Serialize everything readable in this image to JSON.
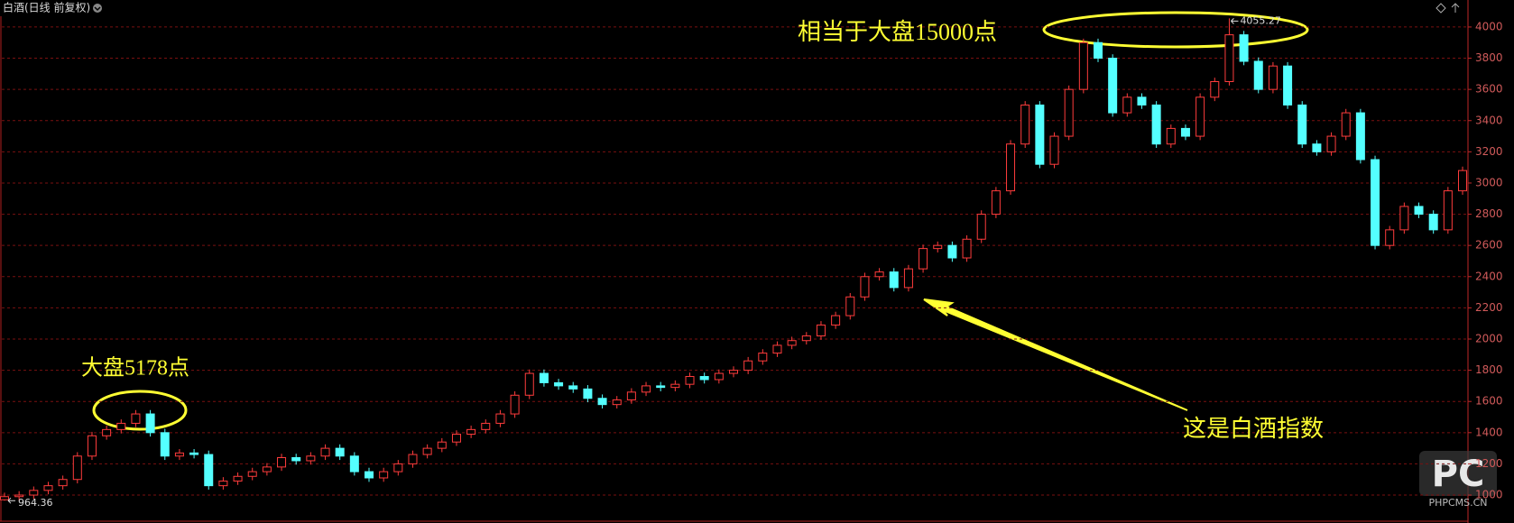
{
  "chart_data": {
    "type": "candlestick",
    "title": "白酒(日线 前复权)",
    "open": [
      970,
      990,
      1000,
      1030,
      1060,
      1100,
      1250,
      1380,
      1420,
      1460,
      1520,
      1400,
      1250,
      1270,
      1260,
      1060,
      1090,
      1120,
      1150,
      1180,
      1240,
      1220,
      1250,
      1300,
      1250,
      1150,
      1110,
      1150,
      1200,
      1260,
      1300,
      1340,
      1390,
      1420,
      1460,
      1520,
      1640,
      1780,
      1720,
      1700,
      1680,
      1620,
      1580,
      1610,
      1660,
      1700,
      1690,
      1710,
      1760,
      1740,
      1780,
      1800,
      1860,
      1910,
      1960,
      1990,
      2020,
      2090,
      2150,
      2270,
      2400,
      2430,
      2330,
      2450,
      2580,
      2600,
      2520,
      2640,
      2800,
      2950,
      3250,
      3500,
      3120,
      3300,
      3600,
      3900,
      3800,
      3450,
      3550,
      3500,
      3250,
      3350,
      3300,
      3550,
      3650,
      3950,
      3780,
      3600,
      3750,
      3500,
      3250,
      3200,
      3300,
      3450,
      3150,
      2600,
      2700,
      2850,
      2800,
      2700,
      2950
    ],
    "high": [
      1015,
      1025,
      1055,
      1085,
      1125,
      1275,
      1405,
      1445,
      1485,
      1545,
      1545,
      1425,
      1295,
      1295,
      1285,
      1115,
      1145,
      1175,
      1205,
      1265,
      1265,
      1275,
      1325,
      1325,
      1275,
      1175,
      1175,
      1225,
      1285,
      1325,
      1365,
      1415,
      1445,
      1485,
      1545,
      1665,
      1805,
      1805,
      1745,
      1725,
      1705,
      1645,
      1635,
      1685,
      1725,
      1725,
      1735,
      1785,
      1785,
      1805,
      1825,
      1885,
      1935,
      1985,
      2015,
      2045,
      2115,
      2175,
      2295,
      2425,
      2455,
      2455,
      2475,
      2605,
      2625,
      2625,
      2665,
      2825,
      2975,
      3275,
      3525,
      3525,
      3325,
      3625,
      3925,
      3925,
      3825,
      3575,
      3575,
      3525,
      3375,
      3375,
      3575,
      3675,
      4055.27,
      3975,
      3805,
      3775,
      3775,
      3525,
      3275,
      3325,
      3475,
      3475,
      3175,
      2725,
      2875,
      2875,
      2825,
      2975,
      3105
    ],
    "low": [
      964.36,
      965,
      975,
      1005,
      1035,
      1075,
      1225,
      1355,
      1395,
      1435,
      1375,
      1225,
      1225,
      1235,
      1035,
      1035,
      1065,
      1095,
      1125,
      1155,
      1195,
      1195,
      1225,
      1225,
      1125,
      1085,
      1085,
      1125,
      1175,
      1235,
      1275,
      1315,
      1365,
      1395,
      1435,
      1495,
      1615,
      1695,
      1675,
      1655,
      1595,
      1555,
      1555,
      1585,
      1635,
      1665,
      1665,
      1685,
      1715,
      1715,
      1755,
      1775,
      1835,
      1885,
      1935,
      1965,
      1995,
      2065,
      2125,
      2245,
      2375,
      2305,
      2305,
      2425,
      2555,
      2495,
      2495,
      2615,
      2775,
      2925,
      3225,
      3095,
      3095,
      3275,
      3575,
      3775,
      3425,
      3425,
      3475,
      3225,
      3225,
      3275,
      3275,
      3525,
      3625,
      3755,
      3575,
      3575,
      3475,
      3225,
      3175,
      3175,
      3275,
      3125,
      2575,
      2575,
      2675,
      2775,
      2675,
      2675,
      2925
    ],
    "close": [
      990,
      1000,
      1030,
      1060,
      1100,
      1250,
      1380,
      1420,
      1460,
      1520,
      1400,
      1250,
      1270,
      1260,
      1060,
      1090,
      1120,
      1150,
      1180,
      1240,
      1220,
      1250,
      1300,
      1250,
      1150,
      1110,
      1150,
      1200,
      1260,
      1300,
      1340,
      1390,
      1420,
      1460,
      1520,
      1640,
      1780,
      1720,
      1700,
      1680,
      1620,
      1580,
      1610,
      1660,
      1700,
      1690,
      1710,
      1760,
      1740,
      1780,
      1800,
      1860,
      1910,
      1960,
      1990,
      2020,
      2090,
      2150,
      2270,
      2400,
      2430,
      2330,
      2450,
      2580,
      2600,
      2520,
      2640,
      2800,
      2950,
      3250,
      3500,
      3120,
      3300,
      3600,
      3900,
      3800,
      3450,
      3550,
      3500,
      3250,
      3350,
      3300,
      3550,
      3650,
      3950,
      3780,
      3600,
      3750,
      3500,
      3250,
      3200,
      3300,
      3450,
      3150,
      2600,
      2700,
      2850,
      2800,
      2700,
      2950,
      3080
    ],
    "up_color": "#ff3c3c",
    "down_color": "#54ffff",
    "ylim": [
      821,
      4173
    ],
    "yticks": [
      1000,
      1200,
      1400,
      1600,
      1800,
      2000,
      2200,
      2400,
      2600,
      2800,
      3000,
      3200,
      3400,
      3600,
      3800,
      4000
    ],
    "grid": true,
    "annotations": [
      "相当于大盘15000点",
      "大盘5178点",
      "这是白酒指数"
    ],
    "watermark_logo": "PC",
    "watermark": "PHPCMS.CN"
  }
}
